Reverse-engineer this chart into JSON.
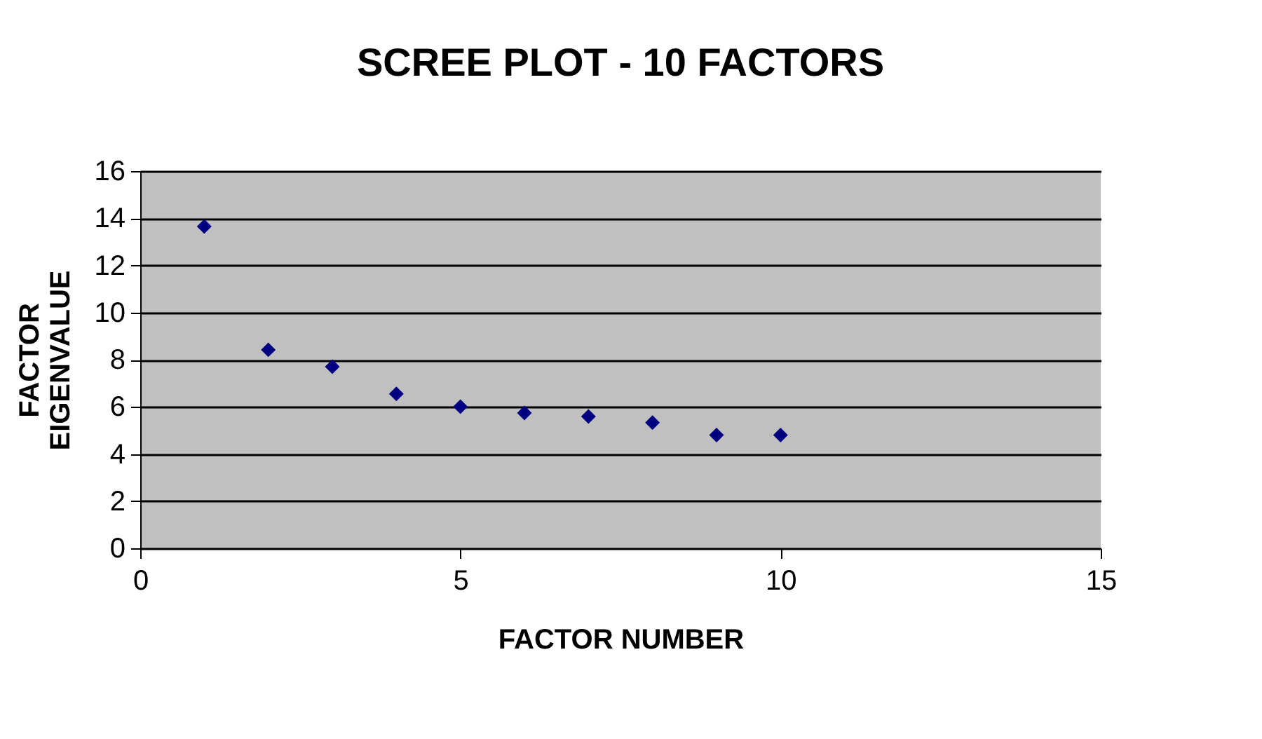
{
  "chart_data": {
    "type": "scatter",
    "title": "SCREE PLOT - 10 FACTORS",
    "xlabel": "FACTOR NUMBER",
    "ylabel": "FACTOR\nEIGENVALUE",
    "x": [
      1,
      2,
      3,
      4,
      5,
      6,
      7,
      8,
      9,
      10
    ],
    "series": [
      {
        "color": "#000080",
        "values": [
          13.65,
          8.42,
          7.7,
          6.55,
          6.01,
          5.74,
          5.59,
          5.33,
          4.8,
          4.8
        ]
      }
    ],
    "xlim": [
      0,
      15
    ],
    "xticks": [
      0,
      5,
      10,
      15
    ],
    "ylim": [
      0,
      16
    ],
    "yticks": [
      0,
      2,
      4,
      6,
      8,
      10,
      12,
      14,
      16
    ],
    "grid": "y",
    "marker": "diamond",
    "legend": false
  }
}
